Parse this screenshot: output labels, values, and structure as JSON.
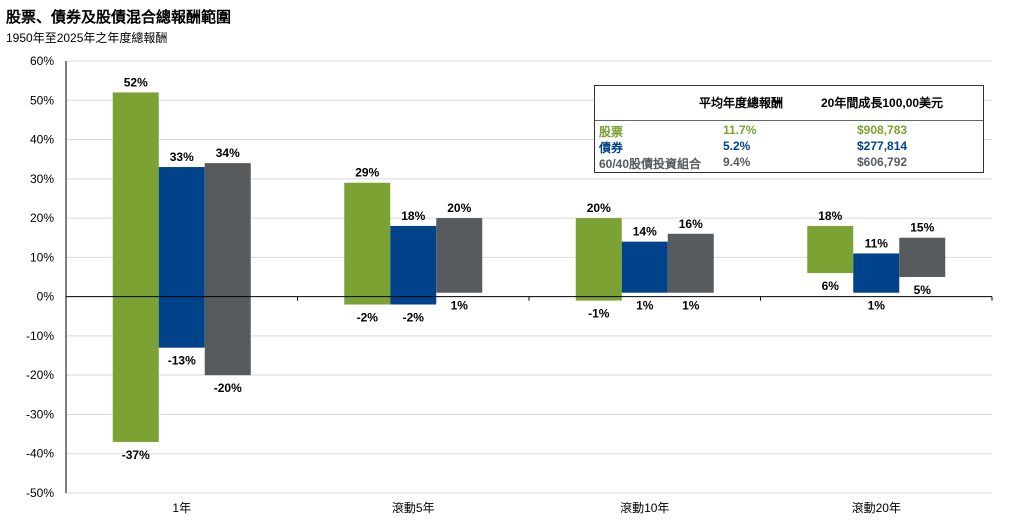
{
  "header": {
    "title": "股票、債券及股債混合總報酬範圍",
    "subtitle": "1950年至2025年之年度總報酬"
  },
  "colors": {
    "stocks": "#7ba232",
    "bonds": "#00438a",
    "blend": "#575b5e"
  },
  "legend": {
    "col_avg": "平均年度總報酬",
    "col_growth": "20年間成長100,00美元",
    "rows": [
      {
        "name": "股票",
        "avg": "11.7%",
        "growth": "$908,783",
        "color": "#7ba232"
      },
      {
        "name": "債券",
        "avg": "5.2%",
        "growth": "$277,814",
        "color": "#00438a"
      },
      {
        "name": "60/40股債投資組合",
        "avg": "9.4%",
        "growth": "$606,792",
        "color": "#575b5e"
      }
    ]
  },
  "chart_data": {
    "type": "bar",
    "subtype": "floating-range",
    "ylim": [
      -50,
      60
    ],
    "yticks": [
      "60%",
      "50%",
      "40%",
      "30%",
      "20%",
      "10%",
      "0%",
      "-10%",
      "-20%",
      "-30%",
      "-40%",
      "-50%"
    ],
    "categories": [
      "1年",
      "滾動5年",
      "滾動10年",
      "滾動20年"
    ],
    "series": [
      {
        "name": "股票",
        "color": "#7ba232",
        "high": [
          52,
          29,
          20,
          18
        ],
        "low": [
          -37,
          -2,
          -1,
          6
        ],
        "high_labels": [
          "52%",
          "29%",
          "20%",
          "18%"
        ],
        "low_labels": [
          "-37%",
          "-2%",
          "-1%",
          "6%"
        ]
      },
      {
        "name": "債券",
        "color": "#00438a",
        "high": [
          33,
          18,
          14,
          11
        ],
        "low": [
          -13,
          -2,
          1,
          1
        ],
        "high_labels": [
          "33%",
          "18%",
          "14%",
          "11%"
        ],
        "low_labels": [
          "-13%",
          "-2%",
          "1%",
          "1%"
        ]
      },
      {
        "name": "60/40股債投資組合",
        "color": "#575b5e",
        "high": [
          34,
          20,
          16,
          15
        ],
        "low": [
          -20,
          1,
          1,
          5
        ],
        "high_labels": [
          "34%",
          "20%",
          "16%",
          "15%"
        ],
        "low_labels": [
          "-20%",
          "1%",
          "1%",
          "5%"
        ]
      }
    ],
    "grid": true,
    "legend_position": "top-right"
  }
}
